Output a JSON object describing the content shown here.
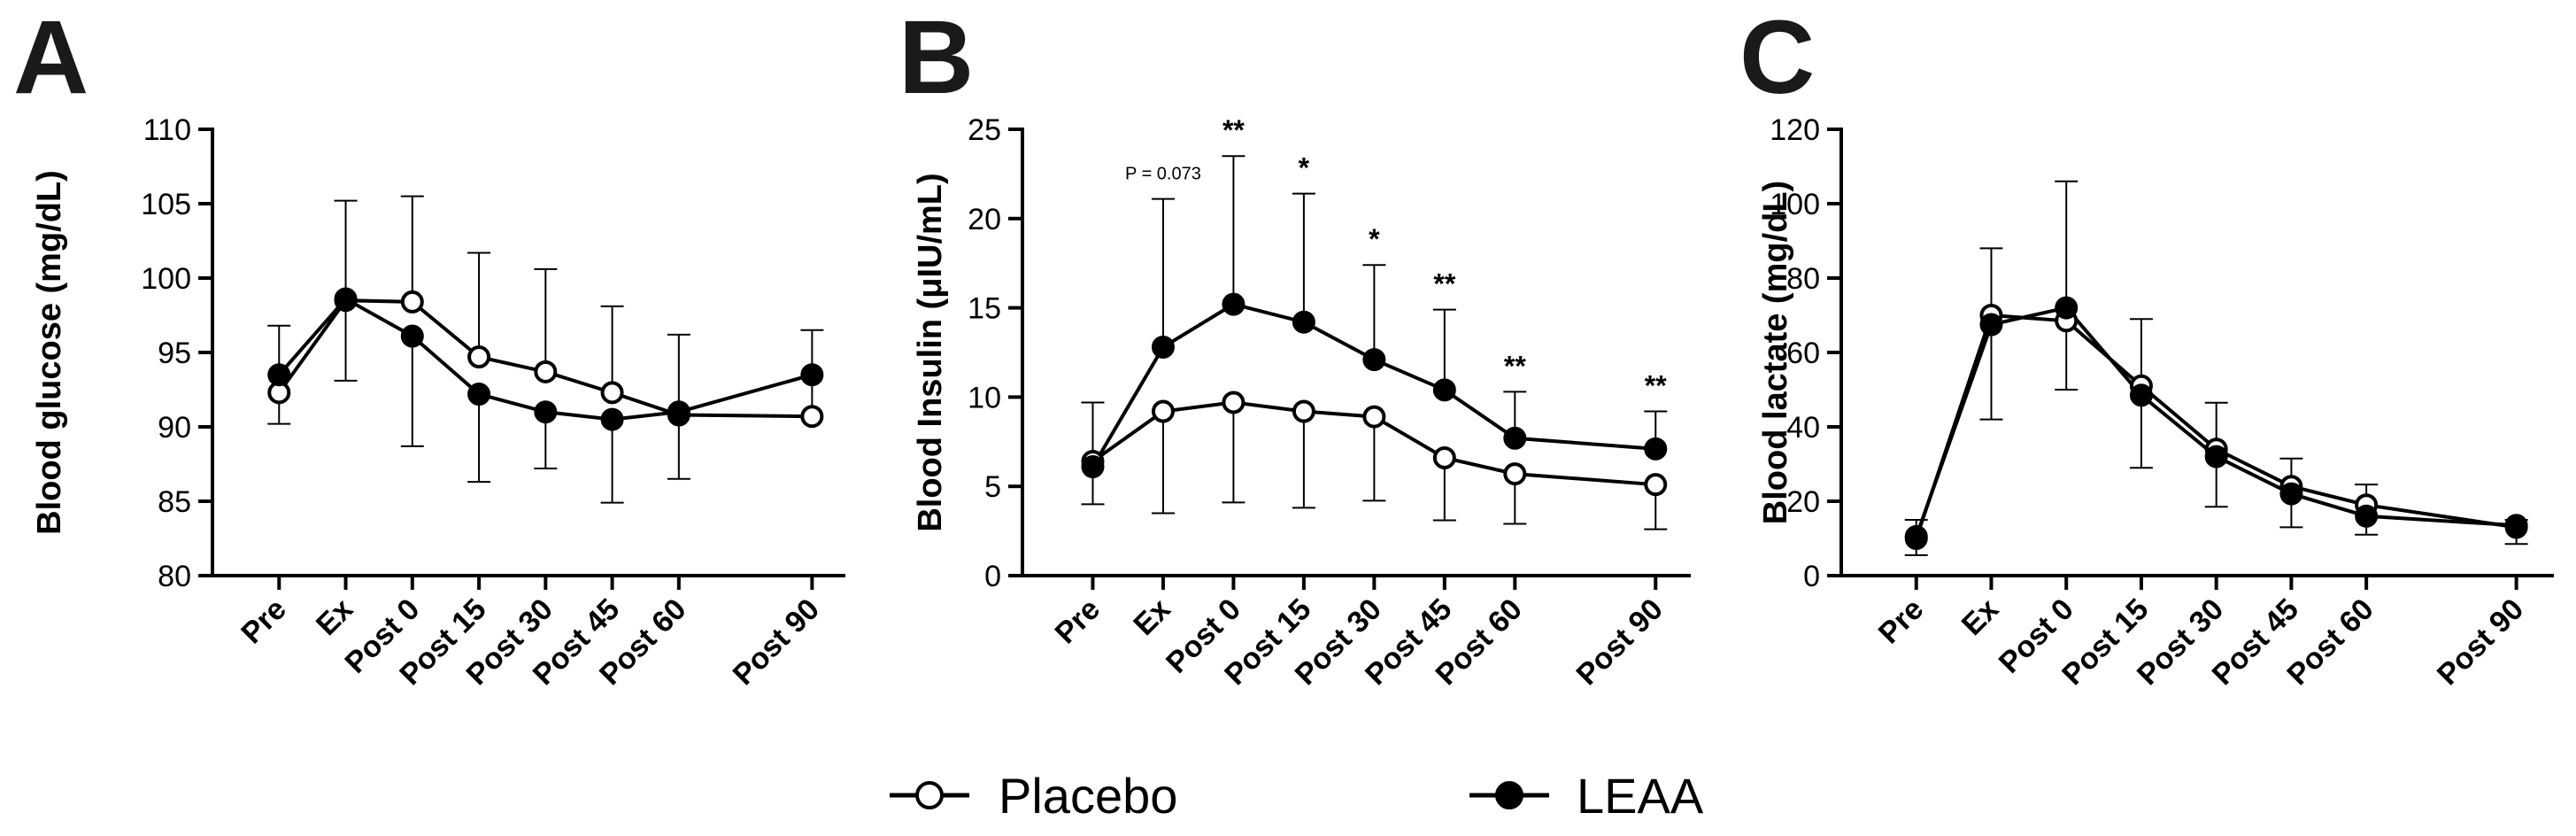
{
  "chart_data": [
    {
      "type": "line",
      "panel": "A",
      "ylabel": "Blood glucose (mg/dL)",
      "ylim": [
        80,
        110
      ],
      "yticks": [
        80,
        85,
        90,
        95,
        100,
        105,
        110
      ],
      "categories": [
        "Pre",
        "Ex",
        "Post 0",
        "Post 15",
        "Post 30",
        "Post 45",
        "Post 60",
        "Post 90"
      ],
      "x": [
        -10,
        0,
        10,
        20,
        30,
        40,
        50,
        70
      ],
      "series": [
        {
          "name": "Placebo",
          "marker": "open",
          "values": [
            92.3,
            98.5,
            98.4,
            94.7,
            93.7,
            92.3,
            90.8,
            90.7
          ],
          "errors_up": [
            4.5,
            6.7,
            7.1,
            7.0,
            6.9,
            5.8,
            5.4,
            5.8
          ]
        },
        {
          "name": "LEAA",
          "marker": "filled",
          "values": [
            93.5,
            98.6,
            96.1,
            92.2,
            91.0,
            90.5,
            91.0,
            93.5
          ],
          "errors_down": [
            3.3,
            5.5,
            7.4,
            5.9,
            3.8,
            5.6,
            4.5,
            0
          ]
        }
      ],
      "annotations": []
    },
    {
      "type": "line",
      "panel": "B",
      "ylabel": "Blood Insulin (μIU/mL)",
      "ylim": [
        0,
        25
      ],
      "yticks": [
        0,
        5,
        10,
        15,
        20,
        25
      ],
      "categories": [
        "Pre",
        "Ex",
        "Post 0",
        "Post 15",
        "Post 30",
        "Post 45",
        "Post 60",
        "Post 90"
      ],
      "x": [
        -10,
        0,
        10,
        20,
        30,
        40,
        50,
        70
      ],
      "series": [
        {
          "name": "Placebo",
          "marker": "open",
          "values": [
            6.4,
            9.2,
            9.7,
            9.2,
            8.9,
            6.6,
            5.7,
            5.1
          ],
          "errors_down": [
            2.4,
            5.7,
            5.6,
            5.4,
            4.7,
            3.5,
            2.8,
            2.5
          ]
        },
        {
          "name": "LEAA",
          "marker": "filled",
          "values": [
            6.1,
            12.8,
            15.2,
            14.2,
            12.1,
            10.4,
            7.7,
            7.1
          ],
          "errors_up": [
            3.6,
            8.3,
            8.3,
            7.2,
            5.3,
            4.5,
            2.6,
            2.1
          ]
        }
      ],
      "annotations": [
        {
          "index": 1,
          "text": "P = 0.073"
        },
        {
          "index": 2,
          "text": "**"
        },
        {
          "index": 3,
          "text": "*"
        },
        {
          "index": 4,
          "text": "*"
        },
        {
          "index": 5,
          "text": "**"
        },
        {
          "index": 6,
          "text": "**"
        },
        {
          "index": 7,
          "text": "**"
        }
      ]
    },
    {
      "type": "line",
      "panel": "C",
      "ylabel": "Blood lactate (mg/dL)",
      "ylim": [
        0,
        120
      ],
      "yticks": [
        0,
        20,
        40,
        60,
        80,
        100,
        120
      ],
      "categories": [
        "Pre",
        "Ex",
        "Post 0",
        "Post 15",
        "Post 30",
        "Post 45",
        "Post 60",
        "Post 90"
      ],
      "x": [
        -10,
        0,
        10,
        20,
        30,
        40,
        50,
        70
      ],
      "series": [
        {
          "name": "Placebo",
          "marker": "open",
          "values": [
            10,
            70,
            68.5,
            51,
            34,
            24,
            19,
            13
          ],
          "errors_up": [
            5,
            18,
            37.5,
            18,
            12.5,
            7.5,
            5.5,
            2
          ]
        },
        {
          "name": "LEAA",
          "marker": "filled",
          "values": [
            10.5,
            67.5,
            72,
            48.5,
            32,
            22,
            16,
            13.5
          ],
          "errors_down": [
            5,
            25.5,
            22,
            19.5,
            13.5,
            9,
            5,
            5
          ]
        }
      ],
      "annotations": []
    }
  ],
  "legend": [
    {
      "label": "Placebo",
      "marker": "open"
    },
    {
      "label": "LEAA",
      "marker": "filled"
    }
  ]
}
